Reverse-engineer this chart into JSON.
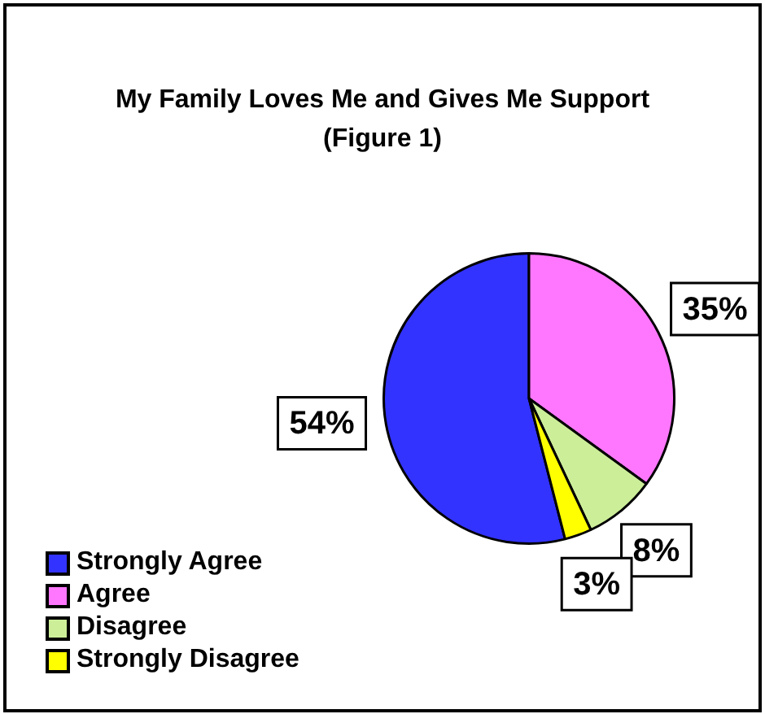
{
  "chart_data": {
    "type": "pie",
    "title": "My Family Loves Me and Gives Me Support (Figure 1)",
    "categories": [
      "Strongly Agree",
      "Agree",
      "Disagree",
      "Strongly Disagree"
    ],
    "values": [
      54,
      35,
      8,
      3
    ],
    "colors": [
      "#3333ff",
      "#ff77ff",
      "#ccee99",
      "#ffff00"
    ],
    "value_labels": [
      "54%",
      "35%",
      "8%",
      "3%"
    ],
    "legend": "bottom left"
  }
}
